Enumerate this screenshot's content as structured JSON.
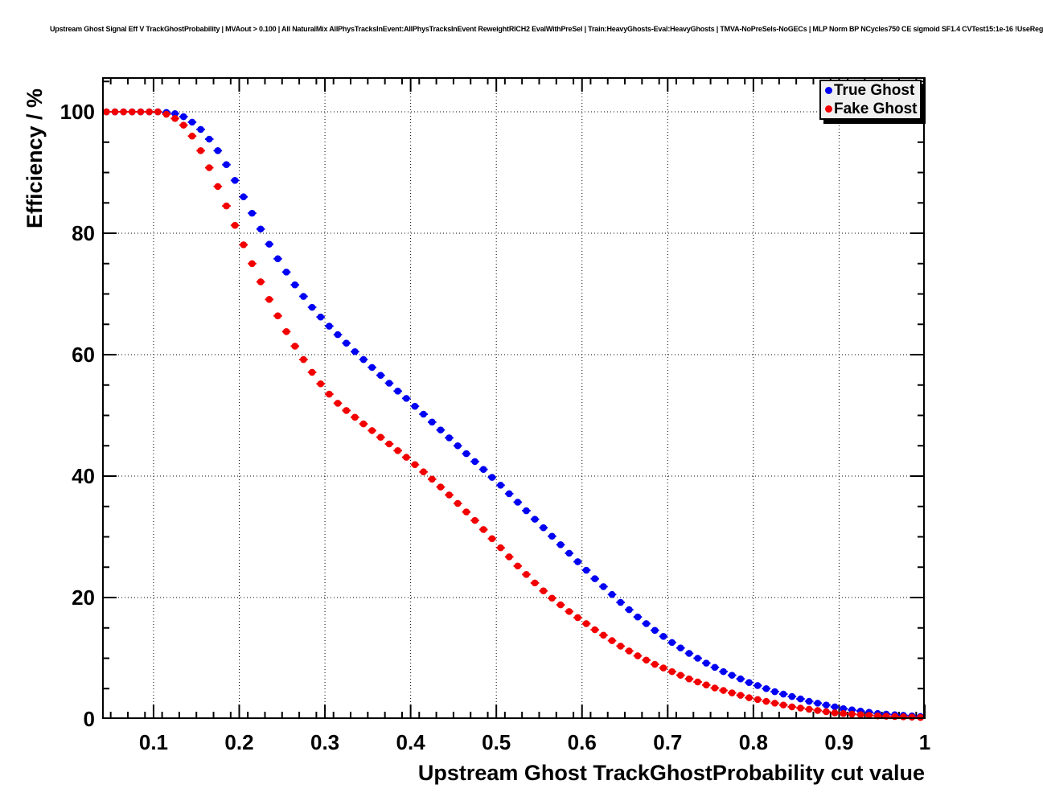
{
  "page": {
    "title": "Upstream Ghost Signal Eff V TrackGhostProbability | MVAout > 0.100 | All NaturalMix AllPhysTracksInEvent:AllPhysTracksInEvent ReweightRICH2 EvalWithPreSel | Train:HeavyGhosts-Eval:HeavyGhosts | TMVA-NoPreSels-NoGECs | MLP Norm BP NCycles750 CE sigmoid SF1.4 CVTest15:1e-16 !UseReg"
  },
  "chart_data": {
    "type": "scatter",
    "title": "Upstream Ghost Signal Eff V TrackGhostProbability | MVAout > 0.100 | All NaturalMix AllPhysTracksInEvent:AllPhysTracksInEvent ReweightRICH2 EvalWithPreSel | Train:HeavyGhosts-Eval:HeavyGhosts | TMVA-NoPreSels-NoGECs | MLP Norm BP NCycles750 CE sigmoid SF1.4 CVTest15:1e-16 !UseReg",
    "xlabel": "Upstream Ghost TrackGhostProbability cut value",
    "ylabel": "Efficiency / %",
    "xlim": [
      0.04,
      1.0
    ],
    "ylim": [
      0,
      105.7
    ],
    "x_tick_values": [
      0.1,
      0.2,
      0.3,
      0.4,
      0.5,
      0.6,
      0.7,
      0.8,
      0.9,
      1.0
    ],
    "x_tick_labels": [
      "0.1",
      "0.2",
      "0.3",
      "0.4",
      "0.5",
      "0.6",
      "0.7",
      "0.8",
      "0.9",
      "1"
    ],
    "y_tick_values": [
      0,
      20,
      40,
      60,
      80,
      100
    ],
    "y_tick_labels": [
      "0",
      "20",
      "40",
      "60",
      "80",
      "100"
    ],
    "x_minor_step": 0.02,
    "y_minor_step": 5,
    "grid": "dotted-at-major-divisions",
    "legend_position": "top-right",
    "marker": "filled-circle-with-x-error-bars",
    "x": [
      0.045,
      0.055,
      0.065,
      0.075,
      0.085,
      0.095,
      0.105,
      0.115,
      0.125,
      0.135,
      0.145,
      0.155,
      0.165,
      0.175,
      0.185,
      0.195,
      0.205,
      0.215,
      0.225,
      0.235,
      0.245,
      0.255,
      0.265,
      0.275,
      0.285,
      0.295,
      0.305,
      0.315,
      0.325,
      0.335,
      0.345,
      0.355,
      0.365,
      0.375,
      0.385,
      0.395,
      0.405,
      0.415,
      0.425,
      0.435,
      0.445,
      0.455,
      0.465,
      0.475,
      0.485,
      0.495,
      0.505,
      0.515,
      0.525,
      0.535,
      0.545,
      0.555,
      0.565,
      0.575,
      0.585,
      0.595,
      0.605,
      0.615,
      0.625,
      0.635,
      0.645,
      0.655,
      0.665,
      0.675,
      0.685,
      0.695,
      0.705,
      0.715,
      0.725,
      0.735,
      0.745,
      0.755,
      0.765,
      0.775,
      0.785,
      0.795,
      0.805,
      0.815,
      0.825,
      0.835,
      0.845,
      0.855,
      0.865,
      0.875,
      0.885,
      0.895,
      0.905,
      0.915,
      0.925,
      0.935,
      0.945,
      0.955,
      0.965,
      0.975,
      0.985,
      0.995
    ],
    "series": [
      {
        "name": "True Ghost",
        "color": "#0000f2",
        "values": [
          100,
          100,
          100,
          100,
          100,
          100,
          100,
          99.9,
          99.7,
          99.2,
          98.3,
          97.1,
          95.5,
          93.6,
          91.3,
          88.7,
          86.0,
          83.3,
          80.7,
          78.2,
          75.8,
          73.6,
          71.5,
          69.6,
          67.8,
          66.2,
          64.7,
          63.3,
          61.9,
          60.5,
          59.2,
          57.9,
          56.6,
          55.3,
          54.0,
          52.8,
          51.5,
          50.2,
          48.9,
          47.6,
          46.3,
          45.0,
          43.7,
          42.4,
          41.1,
          39.8,
          38.5,
          37.1,
          35.7,
          34.3,
          32.9,
          31.5,
          30.1,
          28.7,
          27.3,
          25.9,
          24.5,
          23.1,
          21.8,
          20.5,
          19.2,
          18.0,
          16.8,
          15.7,
          14.6,
          13.6,
          12.6,
          11.7,
          10.8,
          10.0,
          9.2,
          8.5,
          7.8,
          7.2,
          6.6,
          6.0,
          5.5,
          5.0,
          4.5,
          4.1,
          3.7,
          3.3,
          2.9,
          2.6,
          2.3,
          2.0,
          1.7,
          1.5,
          1.3,
          1.1,
          0.9,
          0.8,
          0.7,
          0.6,
          0.5,
          0.4
        ]
      },
      {
        "name": "Fake Ghost",
        "color": "#f20000",
        "values": [
          100,
          100,
          100,
          100,
          100,
          100,
          100,
          99.6,
          98.9,
          97.8,
          96.0,
          93.6,
          90.8,
          87.7,
          84.5,
          81.3,
          78.1,
          75.0,
          72.0,
          69.1,
          66.4,
          63.8,
          61.4,
          59.2,
          57.1,
          55.2,
          53.5,
          52.0,
          50.8,
          49.7,
          48.6,
          47.5,
          46.4,
          45.3,
          44.2,
          43.1,
          41.9,
          40.7,
          39.5,
          38.2,
          36.9,
          35.5,
          34.1,
          32.7,
          31.2,
          29.7,
          28.2,
          26.7,
          25.2,
          23.8,
          22.4,
          21.1,
          19.9,
          18.8,
          17.7,
          16.7,
          15.7,
          14.7,
          13.8,
          12.9,
          12.0,
          11.2,
          10.4,
          9.7,
          9.0,
          8.4,
          7.8,
          7.2,
          6.6,
          6.1,
          5.6,
          5.1,
          4.7,
          4.3,
          3.9,
          3.5,
          3.2,
          2.9,
          2.6,
          2.3,
          2.0,
          1.8,
          1.6,
          1.4,
          1.2,
          1.0,
          0.9,
          0.8,
          0.7,
          0.6,
          0.5,
          0.45,
          0.4,
          0.35,
          0.3,
          0.25
        ]
      }
    ]
  }
}
